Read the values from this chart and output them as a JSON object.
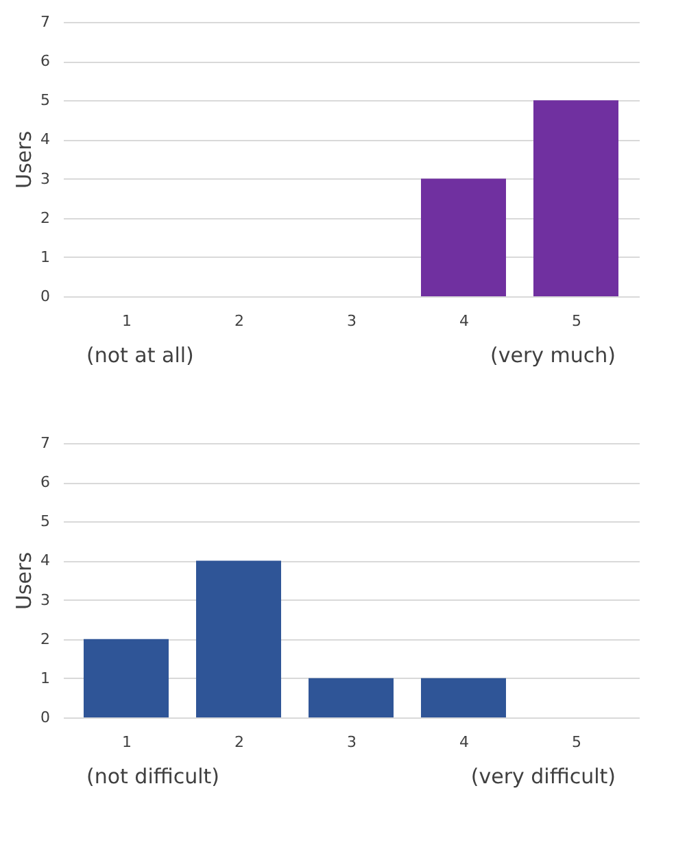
{
  "chart_data": [
    {
      "type": "bar",
      "ylabel": "Users",
      "categories": [
        "1",
        "2",
        "3",
        "4",
        "5"
      ],
      "values": [
        0,
        0,
        0,
        3,
        5
      ],
      "color": "#7030a0",
      "ylim": [
        0,
        7
      ],
      "yticks": [
        0,
        1,
        2,
        3,
        4,
        5,
        6,
        7
      ],
      "grid": "y",
      "annotations": [
        "(not at all)",
        "(very much)"
      ]
    },
    {
      "type": "bar",
      "ylabel": "Users",
      "categories": [
        "1",
        "2",
        "3",
        "4",
        "5"
      ],
      "values": [
        2,
        4,
        1,
        1,
        0
      ],
      "color": "#2f5597",
      "ylim": [
        0,
        7
      ],
      "yticks": [
        0,
        1,
        2,
        3,
        4,
        5,
        6,
        7
      ],
      "grid": "y",
      "annotations": [
        "(not difficult)",
        "(very difficult)"
      ]
    }
  ]
}
